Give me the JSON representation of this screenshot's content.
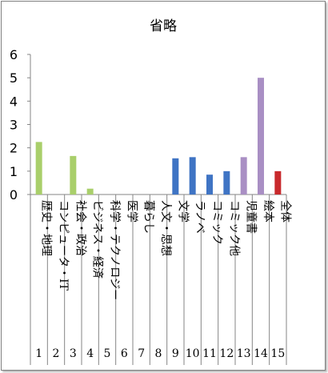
{
  "chart_data": {
    "type": "bar",
    "title": "省略",
    "ylim": [
      0,
      6
    ],
    "yticks": [
      "0",
      "1",
      "2",
      "3",
      "4",
      "5",
      "6"
    ],
    "grid": false,
    "categories": [
      "歴史・地理",
      "コンピュータ・IT",
      "社会・政治",
      "ビジネス・経済",
      "科学・テクノロジー",
      "医学",
      "暮らし",
      "人文・思想",
      "文学",
      "ラノベ",
      "コミック",
      "コミック他",
      "児童書",
      "絵本",
      "全体"
    ],
    "numbers": [
      "1",
      "2",
      "3",
      "4",
      "5",
      "6",
      "7",
      "8",
      "9",
      "10",
      "11",
      "12",
      "13",
      "14",
      "15"
    ],
    "values": [
      2.25,
      0,
      1.65,
      0.25,
      0,
      0,
      0,
      0,
      1.55,
      1.6,
      0.85,
      1.0,
      1.6,
      5.0,
      1.0
    ],
    "bar_colors": [
      "#a9cf6b",
      "#a9cf6b",
      "#a9cf6b",
      "#a9cf6b",
      "#a9cf6b",
      "#a9cf6b",
      "#a9cf6b",
      "#a9cf6b",
      "#3f74c4",
      "#3f74c4",
      "#3f74c4",
      "#3f74c4",
      "#a98fc4",
      "#a98fc4",
      "#c8292c"
    ]
  }
}
